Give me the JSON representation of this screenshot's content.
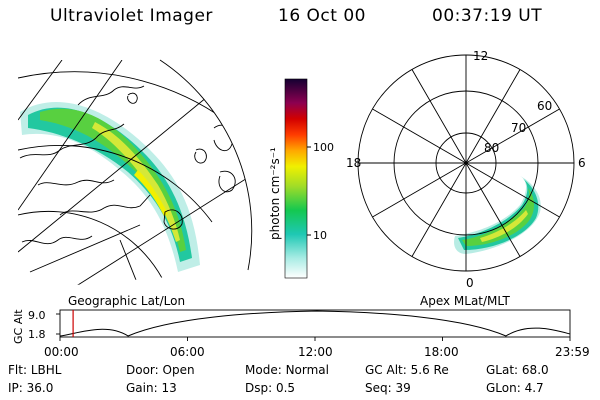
{
  "header": {
    "title": "Ultraviolet Imager",
    "date": "16 Oct 00",
    "time": "00:37:19 UT"
  },
  "colorbar": {
    "unit_label": "photon cm⁻²s⁻¹",
    "ticks": [
      "100",
      "10"
    ]
  },
  "left_panel": {
    "caption": "Geographic Lat/Lon"
  },
  "right_panel": {
    "caption": "Apex MLat/MLT",
    "lat_labels": [
      "60",
      "70",
      "80"
    ],
    "mlt_labels": [
      "12",
      "18",
      "6",
      "0"
    ]
  },
  "timeline": {
    "ylabel": "GC Alt",
    "y_ticks": [
      "9.0",
      "1.8"
    ],
    "x_ticks": [
      "00:00",
      "06:00",
      "12:00",
      "18:00",
      "23:59"
    ],
    "marker_time": "00:37",
    "marker_color": "#cc0000"
  },
  "info_row1": [
    {
      "key": "Flt:",
      "value": "LBHL"
    },
    {
      "key": "Door:",
      "value": "Open"
    },
    {
      "key": "Mode:",
      "value": "Normal"
    },
    {
      "key": "GC Alt:",
      "value": "5.6 Re"
    },
    {
      "key": "GLat:",
      "value": "68.0"
    }
  ],
  "info_row2": [
    {
      "key": "IP:",
      "value": "36.0"
    },
    {
      "key": "Gain:",
      "value": "13"
    },
    {
      "key": "Dsp:",
      "value": "0.5"
    },
    {
      "key": "Seq:",
      "value": "39"
    },
    {
      "key": "GLon:",
      "value": "4.7"
    }
  ]
}
